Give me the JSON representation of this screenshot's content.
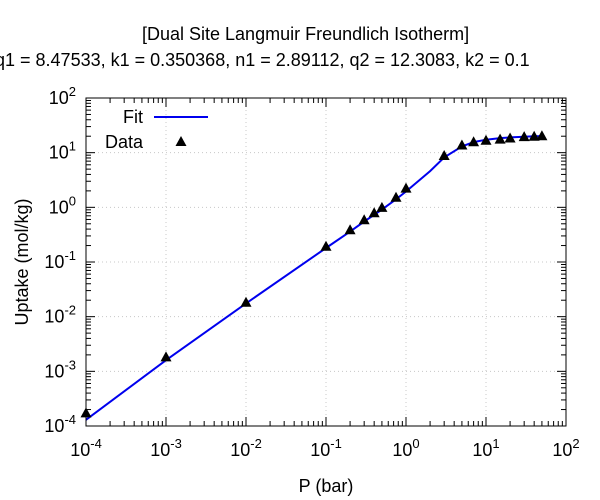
{
  "chart_data": {
    "type": "scatter",
    "title": "[Dual Site Langmuir Freundlich Isotherm]",
    "subtitle": "q1 = 8.47533, k1 = 0.350368, n1 = 2.89112, q2 = 12.3083, k2 = 0.1",
    "xlabel": "P (bar)",
    "ylabel": "Uptake (mol/kg)",
    "x_scale": "log",
    "y_scale": "log",
    "xlim": [
      0.0001,
      100
    ],
    "ylim": [
      0.0001,
      100
    ],
    "x_ticks": [
      {
        "value": 0.0001,
        "base": "10",
        "exp": "-4"
      },
      {
        "value": 0.001,
        "base": "10",
        "exp": "-3"
      },
      {
        "value": 0.01,
        "base": "10",
        "exp": "-2"
      },
      {
        "value": 0.1,
        "base": "10",
        "exp": "-1"
      },
      {
        "value": 1,
        "base": "10",
        "exp": "0"
      },
      {
        "value": 10,
        "base": "10",
        "exp": "1"
      },
      {
        "value": 100,
        "base": "10",
        "exp": "2"
      }
    ],
    "y_ticks": [
      {
        "value": 0.0001,
        "base": "10",
        "exp": "-4"
      },
      {
        "value": 0.001,
        "base": "10",
        "exp": "-3"
      },
      {
        "value": 0.01,
        "base": "10",
        "exp": "-2"
      },
      {
        "value": 0.1,
        "base": "10",
        "exp": "-1"
      },
      {
        "value": 1,
        "base": "10",
        "exp": "0"
      },
      {
        "value": 10,
        "base": "10",
        "exp": "1"
      },
      {
        "value": 100,
        "base": "10",
        "exp": "2"
      }
    ],
    "grid": true,
    "legend_position": "top-left",
    "series": [
      {
        "name": "Fit",
        "kind": "line",
        "color": "#0000ee",
        "points": [
          [
            0.0001,
            0.00013
          ],
          [
            0.001,
            0.0016
          ],
          [
            0.01,
            0.0175
          ],
          [
            0.1,
            0.18
          ],
          [
            0.2,
            0.36
          ],
          [
            0.3,
            0.55
          ],
          [
            0.4,
            0.73
          ],
          [
            0.5,
            0.91
          ],
          [
            0.75,
            1.4
          ],
          [
            1,
            1.95
          ],
          [
            2,
            4.6
          ],
          [
            3,
            8.2
          ],
          [
            5,
            13.0
          ],
          [
            7,
            15.6
          ],
          [
            10,
            17.3
          ],
          [
            15,
            18.5
          ],
          [
            20,
            19.0
          ],
          [
            30,
            19.6
          ],
          [
            40,
            19.9
          ],
          [
            50,
            20.1
          ]
        ]
      },
      {
        "name": "Data",
        "kind": "scatter",
        "marker": "triangle",
        "color": "#000000",
        "points": [
          [
            0.0001,
            0.00017
          ],
          [
            0.001,
            0.0018
          ],
          [
            0.01,
            0.018
          ],
          [
            0.1,
            0.19
          ],
          [
            0.2,
            0.38
          ],
          [
            0.3,
            0.58
          ],
          [
            0.4,
            0.78
          ],
          [
            0.5,
            0.98
          ],
          [
            0.75,
            1.5
          ],
          [
            1,
            2.2
          ],
          [
            3,
            8.7
          ],
          [
            5,
            13.5
          ],
          [
            7,
            15.5
          ],
          [
            10,
            16.5
          ],
          [
            15,
            17.3
          ],
          [
            20,
            18.2
          ],
          [
            30,
            19.2
          ],
          [
            40,
            19.6
          ],
          [
            50,
            20.0
          ]
        ]
      }
    ]
  }
}
